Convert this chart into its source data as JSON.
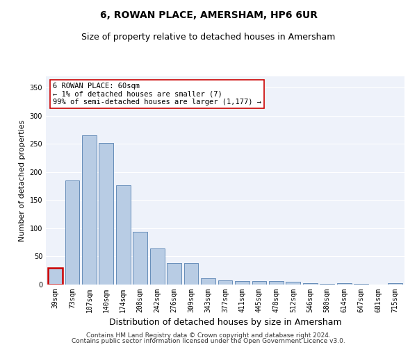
{
  "title": "6, ROWAN PLACE, AMERSHAM, HP6 6UR",
  "subtitle": "Size of property relative to detached houses in Amersham",
  "xlabel": "Distribution of detached houses by size in Amersham",
  "ylabel": "Number of detached properties",
  "categories": [
    "39sqm",
    "73sqm",
    "107sqm",
    "140sqm",
    "174sqm",
    "208sqm",
    "242sqm",
    "276sqm",
    "309sqm",
    "343sqm",
    "377sqm",
    "411sqm",
    "445sqm",
    "478sqm",
    "512sqm",
    "546sqm",
    "580sqm",
    "614sqm",
    "647sqm",
    "681sqm",
    "715sqm"
  ],
  "values": [
    30,
    185,
    265,
    252,
    176,
    94,
    64,
    38,
    38,
    11,
    8,
    6,
    6,
    6,
    5,
    3,
    1,
    3,
    1,
    0,
    2
  ],
  "bar_color": "#b8cce4",
  "bar_edge_color": "#5580b0",
  "highlight_bar_index": 0,
  "highlight_bar_color": "#cc0000",
  "annotation_box_text": "6 ROWAN PLACE: 60sqm\n← 1% of detached houses are smaller (7)\n99% of semi-detached houses are larger (1,177) →",
  "ylim": [
    0,
    370
  ],
  "yticks": [
    0,
    50,
    100,
    150,
    200,
    250,
    300,
    350
  ],
  "background_color": "#eef2fa",
  "grid_color": "#ffffff",
  "footer_line1": "Contains HM Land Registry data © Crown copyright and database right 2024.",
  "footer_line2": "Contains public sector information licensed under the Open Government Licence v3.0.",
  "title_fontsize": 10,
  "subtitle_fontsize": 9,
  "xlabel_fontsize": 9,
  "ylabel_fontsize": 8,
  "tick_fontsize": 7,
  "annotation_fontsize": 7.5,
  "footer_fontsize": 6.5
}
